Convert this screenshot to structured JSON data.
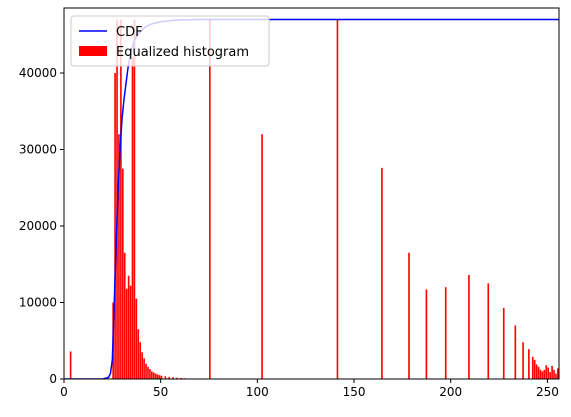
{
  "chart_data": {
    "type": "bar",
    "title": "",
    "xlabel": "",
    "ylabel": "",
    "xlim": [
      0,
      256
    ],
    "ylim": [
      0,
      48500
    ],
    "grid": false,
    "legend_position": "top-left",
    "x_ticks": [
      0,
      50,
      100,
      150,
      200,
      250
    ],
    "y_ticks": [
      0,
      10000,
      20000,
      30000,
      40000
    ],
    "colors": {
      "cdf": "#0000ff",
      "histogram": "#ff0000",
      "axis": "#000000",
      "legend_border": "#cccccc",
      "background": "#ffffff"
    },
    "series": [
      {
        "name": "CDF",
        "kind": "line",
        "x": [
          0,
          20,
          23,
          24,
          25,
          26,
          27,
          28,
          29,
          30,
          31,
          32,
          33,
          34,
          35,
          36,
          38,
          40,
          42,
          45,
          50,
          55,
          60,
          70,
          80,
          100,
          150,
          200,
          256
        ],
        "values": [
          0,
          0,
          200,
          700,
          2500,
          10000,
          18000,
          25000,
          30000,
          34000,
          36500,
          38500,
          40500,
          42000,
          43000,
          44000,
          45000,
          45600,
          46000,
          46400,
          46700,
          46850,
          46950,
          47000,
          47000,
          47000,
          47000,
          47000,
          47000
        ]
      },
      {
        "name": "Equalized histogram",
        "kind": "bar",
        "bar_width": 1,
        "x": [
          3,
          25,
          26,
          27,
          28,
          29,
          30,
          31,
          32,
          33,
          34,
          35,
          36,
          37,
          38,
          39,
          40,
          41,
          42,
          43,
          44,
          45,
          46,
          47,
          48,
          49,
          50,
          52,
          54,
          56,
          58,
          60,
          62,
          75,
          102,
          141,
          164,
          178,
          187,
          197,
          209,
          219,
          227,
          233,
          237,
          240,
          242,
          243,
          244,
          245,
          246,
          247,
          248,
          249,
          250,
          251,
          252,
          253,
          254,
          255
        ],
        "values": [
          3600,
          10000,
          40000,
          47000,
          32000,
          47000,
          27500,
          16500,
          11800,
          13500,
          12200,
          42000,
          47000,
          10500,
          6500,
          4800,
          3500,
          2700,
          2000,
          1600,
          1300,
          1000,
          850,
          700,
          600,
          500,
          420,
          350,
          280,
          220,
          170,
          130,
          100,
          47000,
          32000,
          47000,
          27600,
          16500,
          11700,
          12000,
          13600,
          12500,
          9300,
          7000,
          4800,
          3900,
          2900,
          2500,
          1900,
          1600,
          1200,
          1000,
          1200,
          1800,
          1500,
          900,
          1700,
          1200,
          700,
          1400
        ]
      }
    ]
  }
}
